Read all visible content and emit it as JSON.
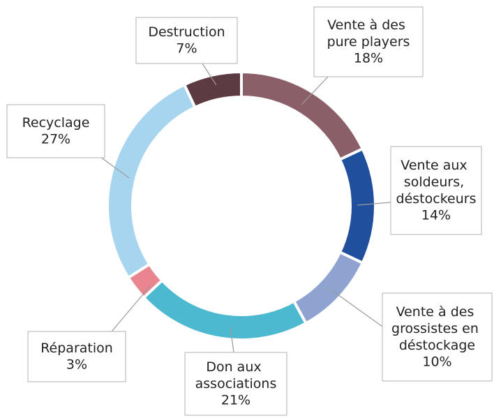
{
  "chart_data": {
    "type": "donut",
    "categories": [
      "Vente à des pure players",
      "Vente aux soldeurs, déstockeurs",
      "Vente à des grossistes en déstockage",
      "Don aux associations",
      "Réparation",
      "Recyclage",
      "Destruction"
    ],
    "values": [
      18,
      14,
      10,
      21,
      3,
      27,
      7
    ],
    "value_labels": [
      "18%",
      "14%",
      "10%",
      "21%",
      "3%",
      "27%",
      "7%"
    ],
    "colors": [
      "#8b5f68",
      "#1f4f9d",
      "#8fa3d1",
      "#4db9d0",
      "#e8858f",
      "#a7d5ef",
      "#5b3a42"
    ]
  }
}
